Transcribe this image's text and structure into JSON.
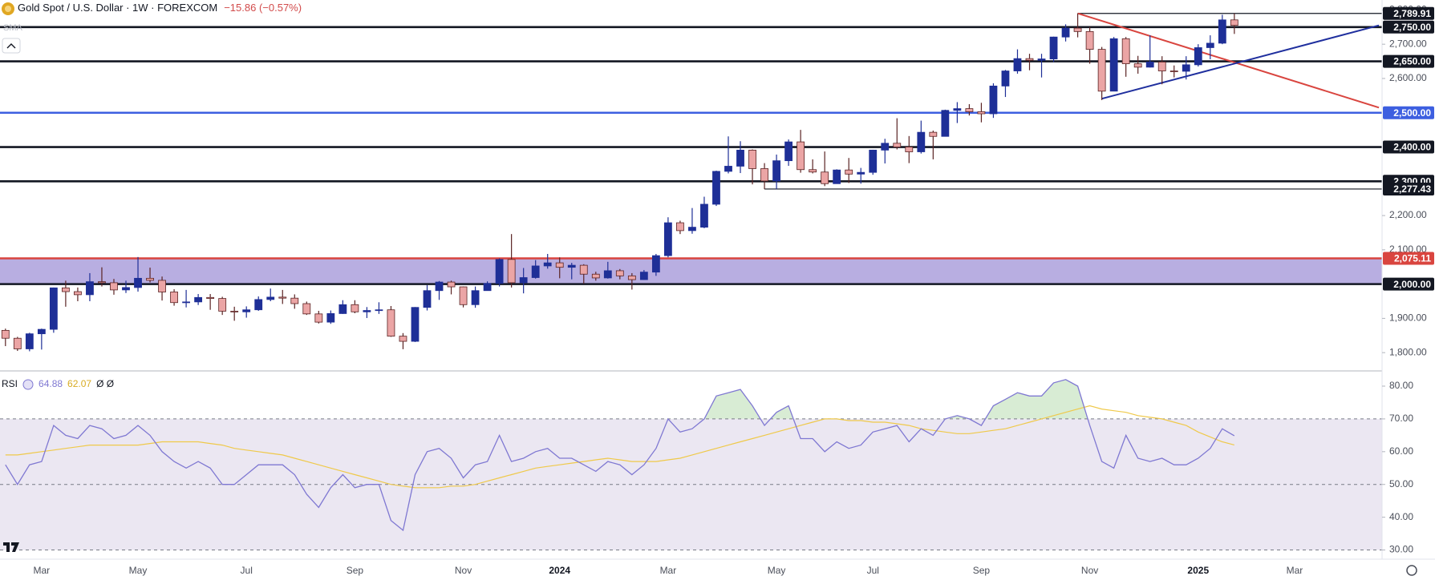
{
  "chart_data": {
    "type": "candlestick",
    "title": "Gold Spot / U.S. Dollar · 1W · FOREXCOM",
    "change": "−15.86 (−0.57%)",
    "indicator_label": "SMA",
    "categories": [
      null,
      null,
      null,
      "Mar",
      null,
      null,
      null,
      null,
      null,
      null,
      null,
      "May",
      null,
      null,
      null,
      null,
      null,
      null,
      null,
      null,
      "Jul",
      null,
      null,
      null,
      null,
      null,
      null,
      null,
      null,
      "Sep",
      null,
      null,
      null,
      null,
      null,
      null,
      null,
      null,
      "Nov",
      null,
      null,
      null,
      null,
      null,
      null,
      null,
      "2024",
      null,
      null,
      null,
      null,
      null,
      null,
      null,
      null,
      "Mar",
      null,
      null,
      null,
      null,
      null,
      null,
      null,
      null,
      "May",
      null,
      null,
      null,
      null,
      null,
      null,
      null,
      "Jul",
      null,
      null,
      null,
      null,
      null,
      null,
      null,
      null,
      "Sep",
      null,
      null,
      null,
      null,
      null,
      null,
      null,
      null,
      "Nov",
      null,
      null,
      null,
      null,
      null,
      null,
      null,
      null,
      "2025",
      null,
      null,
      null,
      null,
      null,
      null,
      null,
      "Mar"
    ],
    "open": [
      1865,
      1842,
      1811,
      1855,
      1868,
      1989,
      1978,
      1969,
      2007,
      2004,
      1983,
      1990,
      2017,
      2011,
      1977,
      1946,
      1948,
      1961,
      1958,
      1921,
      1919,
      1925,
      1955,
      1962,
      1959,
      1943,
      1913,
      1889,
      1914,
      1940,
      1919,
      1923,
      1925,
      1848,
      1833,
      1932,
      1981,
      2006,
      1992,
      1940,
      1981,
      2002,
      2072,
      2004,
      2019,
      2053,
      2062,
      2049,
      2055,
      2029,
      2018,
      2039,
      2024,
      2013,
      2035,
      2083,
      2179,
      2156,
      2166,
      2233,
      2329,
      2344,
      2391,
      2337,
      2301,
      2360,
      2415,
      2334,
      2327,
      2293,
      2333,
      2321,
      2326,
      2391,
      2411,
      2400,
      2386,
      2443,
      2431,
      2507,
      2512,
      2503,
      2497,
      2578,
      2622,
      2658,
      2653,
      2657,
      2721,
      2747,
      2737,
      2685,
      2563,
      2716,
      2643,
      2633,
      2648,
      2622,
      2621,
      2640,
      2690,
      2703,
      2771,
      null,
      null,
      null,
      null,
      null
    ],
    "high": [
      1870,
      1846,
      1858,
      1870,
      1990,
      2010,
      1990,
      2032,
      2049,
      2015,
      2010,
      2079,
      2048,
      2022,
      1985,
      1983,
      1971,
      1971,
      1963,
      1934,
      1935,
      1964,
      1987,
      1983,
      1970,
      1949,
      1922,
      1923,
      1953,
      1953,
      1933,
      1947,
      1936,
      1857,
      1933,
      1997,
      2009,
      2010,
      1993,
      1993,
      2008,
      2075,
      2146,
      2047,
      2070,
      2088,
      2078,
      2062,
      2058,
      2036,
      2065,
      2044,
      2032,
      2041,
      2088,
      2195,
      2185,
      2222,
      2255,
      2331,
      2431,
      2417,
      2393,
      2353,
      2378,
      2422,
      2450,
      2364,
      2387,
      2335,
      2368,
      2339,
      2392,
      2424,
      2484,
      2432,
      2477,
      2448,
      2509,
      2531,
      2525,
      2529,
      2586,
      2625,
      2685,
      2672,
      2672,
      2722,
      2758,
      2790,
      2750,
      2692,
      2721,
      2721,
      2666,
      2726,
      2665,
      2638,
      2665,
      2700,
      2726,
      2786,
      2790,
      null,
      null,
      null,
      null,
      null
    ],
    "low": [
      1819,
      1805,
      1804,
      1809,
      1858,
      1934,
      1950,
      1950,
      1993,
      1969,
      1974,
      1978,
      2005,
      1952,
      1937,
      1932,
      1939,
      1925,
      1910,
      1893,
      1902,
      1922,
      1950,
      1942,
      1928,
      1910,
      1885,
      1884,
      1913,
      1915,
      1901,
      1913,
      1846,
      1810,
      1831,
      1923,
      1954,
      1970,
      1932,
      1931,
      1981,
      1993,
      1990,
      1973,
      2016,
      2045,
      2017,
      2014,
      2001,
      2010,
      2016,
      2014,
      1984,
      2012,
      2024,
      2078,
      2146,
      2147,
      2163,
      2228,
      2323,
      2324,
      2291,
      2277,
      2277,
      2345,
      2325,
      2323,
      2286,
      2293,
      2295,
      2293,
      2319,
      2352,
      2393,
      2353,
      2381,
      2364,
      2431,
      2470,
      2492,
      2472,
      2485,
      2546,
      2614,
      2624,
      2603,
      2648,
      2708,
      2720,
      2643,
      2537,
      2563,
      2605,
      2614,
      2632,
      2583,
      2603,
      2597,
      2635,
      2656,
      2700,
      2730,
      null,
      null,
      null,
      null,
      null
    ],
    "close": [
      1842,
      1811,
      1855,
      1868,
      1989,
      1978,
      1969,
      2007,
      2004,
      1983,
      1990,
      2017,
      2011,
      1977,
      1946,
      1948,
      1961,
      1958,
      1921,
      1919,
      1925,
      1955,
      1962,
      1959,
      1943,
      1913,
      1889,
      1914,
      1940,
      1919,
      1923,
      1925,
      1848,
      1833,
      1932,
      1981,
      2006,
      1992,
      1940,
      1981,
      2002,
      2072,
      2004,
      2019,
      2053,
      2062,
      2049,
      2055,
      2029,
      2018,
      2039,
      2024,
      2013,
      2035,
      2083,
      2179,
      2156,
      2166,
      2233,
      2329,
      2344,
      2391,
      2337,
      2301,
      2360,
      2415,
      2334,
      2327,
      2293,
      2333,
      2321,
      2326,
      2391,
      2411,
      2400,
      2386,
      2443,
      2431,
      2507,
      2512,
      2503,
      2497,
      2578,
      2622,
      2658,
      2653,
      2657,
      2721,
      2747,
      2737,
      2685,
      2563,
      2716,
      2643,
      2633,
      2648,
      2622,
      2621,
      2640,
      2690,
      2703,
      2771,
      2755,
      null,
      null,
      null,
      null,
      null
    ],
    "up_color": "#1e2f97",
    "down_color": "#eba5a5",
    "down_edge": "#5a2323",
    "ylim": [
      1749,
      2829
    ],
    "yticks": [
      {
        "value": 1800,
        "label": "1,800.00"
      },
      {
        "value": 1900,
        "label": "1,900.00"
      },
      {
        "value": 2100,
        "label": "2,100.00"
      },
      {
        "value": 2200,
        "label": "2,200.00"
      },
      {
        "value": 2600,
        "label": "2,600.00"
      },
      {
        "value": 2700,
        "label": "2,700.00"
      },
      {
        "value": 2800,
        "label": "2,800.00"
      }
    ],
    "zone": [
      2000,
      2075.11
    ],
    "zone_color": "#b4aadf",
    "levels": [
      {
        "value": 2789.91,
        "label": "2,789.91",
        "color": "#131722",
        "from": 89,
        "line": "thin"
      },
      {
        "value": 2750,
        "label": "2,750.00",
        "color": "#131722",
        "line": "thick"
      },
      {
        "value": 2650,
        "label": "2,650.00",
        "color": "#131722",
        "line": "thick"
      },
      {
        "value": 2500,
        "label": "2,500.00",
        "color": "#3d5fe0",
        "line": "thick"
      },
      {
        "value": 2400,
        "label": "2,400.00",
        "color": "#131722",
        "line": "thick"
      },
      {
        "value": 2300,
        "label": "2,300.00",
        "color": "#131722",
        "line": "thick"
      },
      {
        "value": 2277.43,
        "label": "2,277.43",
        "color": "#131722",
        "from": 63,
        "line": "thin"
      },
      {
        "value": 2075.11,
        "label": "2,075.11",
        "color": "#d9453f",
        "line": "thick"
      },
      {
        "value": 2000,
        "label": "2,000.00",
        "color": "#131722",
        "line": "thick"
      }
    ],
    "trendlines": [
      {
        "color": "#d9453f",
        "points": [
          [
            89,
            2790
          ],
          [
            114,
            2515
          ]
        ]
      },
      {
        "color": "#1f2f9e",
        "points": [
          [
            91,
            2541
          ],
          [
            114,
            2755
          ]
        ]
      }
    ],
    "rsi": {
      "name": "RSI",
      "color": "#7f78d2",
      "values": [
        56,
        50,
        56,
        57,
        68,
        65,
        64,
        68,
        67,
        64,
        65,
        68,
        65,
        60,
        57,
        55,
        57,
        55,
        50,
        50,
        53,
        56,
        56,
        56,
        53,
        47,
        43,
        49,
        53,
        49,
        50,
        50,
        39,
        36,
        53,
        60,
        61,
        58,
        52,
        56,
        57,
        65,
        57,
        58,
        60,
        61,
        58,
        58,
        56,
        54,
        57,
        56,
        53,
        56,
        61,
        70,
        66,
        67,
        70,
        77,
        78,
        79,
        74,
        68,
        72,
        74,
        64,
        64,
        60,
        63,
        61,
        62,
        66,
        67,
        68,
        63,
        67,
        65,
        70,
        71,
        70,
        68,
        74,
        76,
        78,
        77,
        77,
        81,
        82,
        80,
        68,
        57,
        55,
        65,
        58,
        57,
        58,
        56,
        56,
        58,
        61,
        67,
        64.88,
        null,
        null,
        null,
        null,
        null
      ],
      "ma": {
        "color": "#efc94a",
        "values": [
          59,
          59,
          59.5,
          60,
          60.5,
          61,
          61.5,
          62,
          62,
          62,
          62,
          62,
          62.5,
          63,
          63,
          63,
          63,
          62.5,
          62,
          61,
          60.5,
          60,
          59.5,
          59,
          58,
          57,
          56,
          55,
          54,
          53,
          52,
          51,
          50,
          49.5,
          49,
          49,
          49,
          49.5,
          49.5,
          50,
          51,
          52,
          53,
          54,
          55,
          55.5,
          56,
          56.5,
          57,
          57.5,
          58,
          57.5,
          57,
          57,
          57,
          57.5,
          58,
          59,
          60,
          61,
          62,
          63,
          64,
          65,
          66,
          67,
          68,
          69,
          70,
          70,
          69.5,
          69.5,
          69,
          69,
          68.5,
          68,
          67,
          66.5,
          66,
          65.5,
          65.5,
          66,
          66.5,
          67,
          68,
          69,
          70,
          71,
          72,
          73,
          74,
          73,
          72.5,
          72,
          71,
          70.5,
          70,
          69,
          68,
          66,
          64.5,
          63,
          62.07,
          null,
          null,
          null,
          null,
          null
        ]
      },
      "extra": "Ø Ø",
      "ylim": [
        27.2,
        84.4
      ],
      "yticks": [
        {
          "value": 30,
          "label": "30.00"
        },
        {
          "value": 40,
          "label": "40.00"
        },
        {
          "value": 50,
          "label": "50.00"
        },
        {
          "value": 60,
          "label": "60.00"
        },
        {
          "value": 70,
          "label": "70.00"
        },
        {
          "value": 80,
          "label": "80.00"
        }
      ],
      "bands": [
        70,
        50,
        30
      ],
      "band_color": "#ebe7f2",
      "overbought_color": "#d8ecd4"
    }
  }
}
